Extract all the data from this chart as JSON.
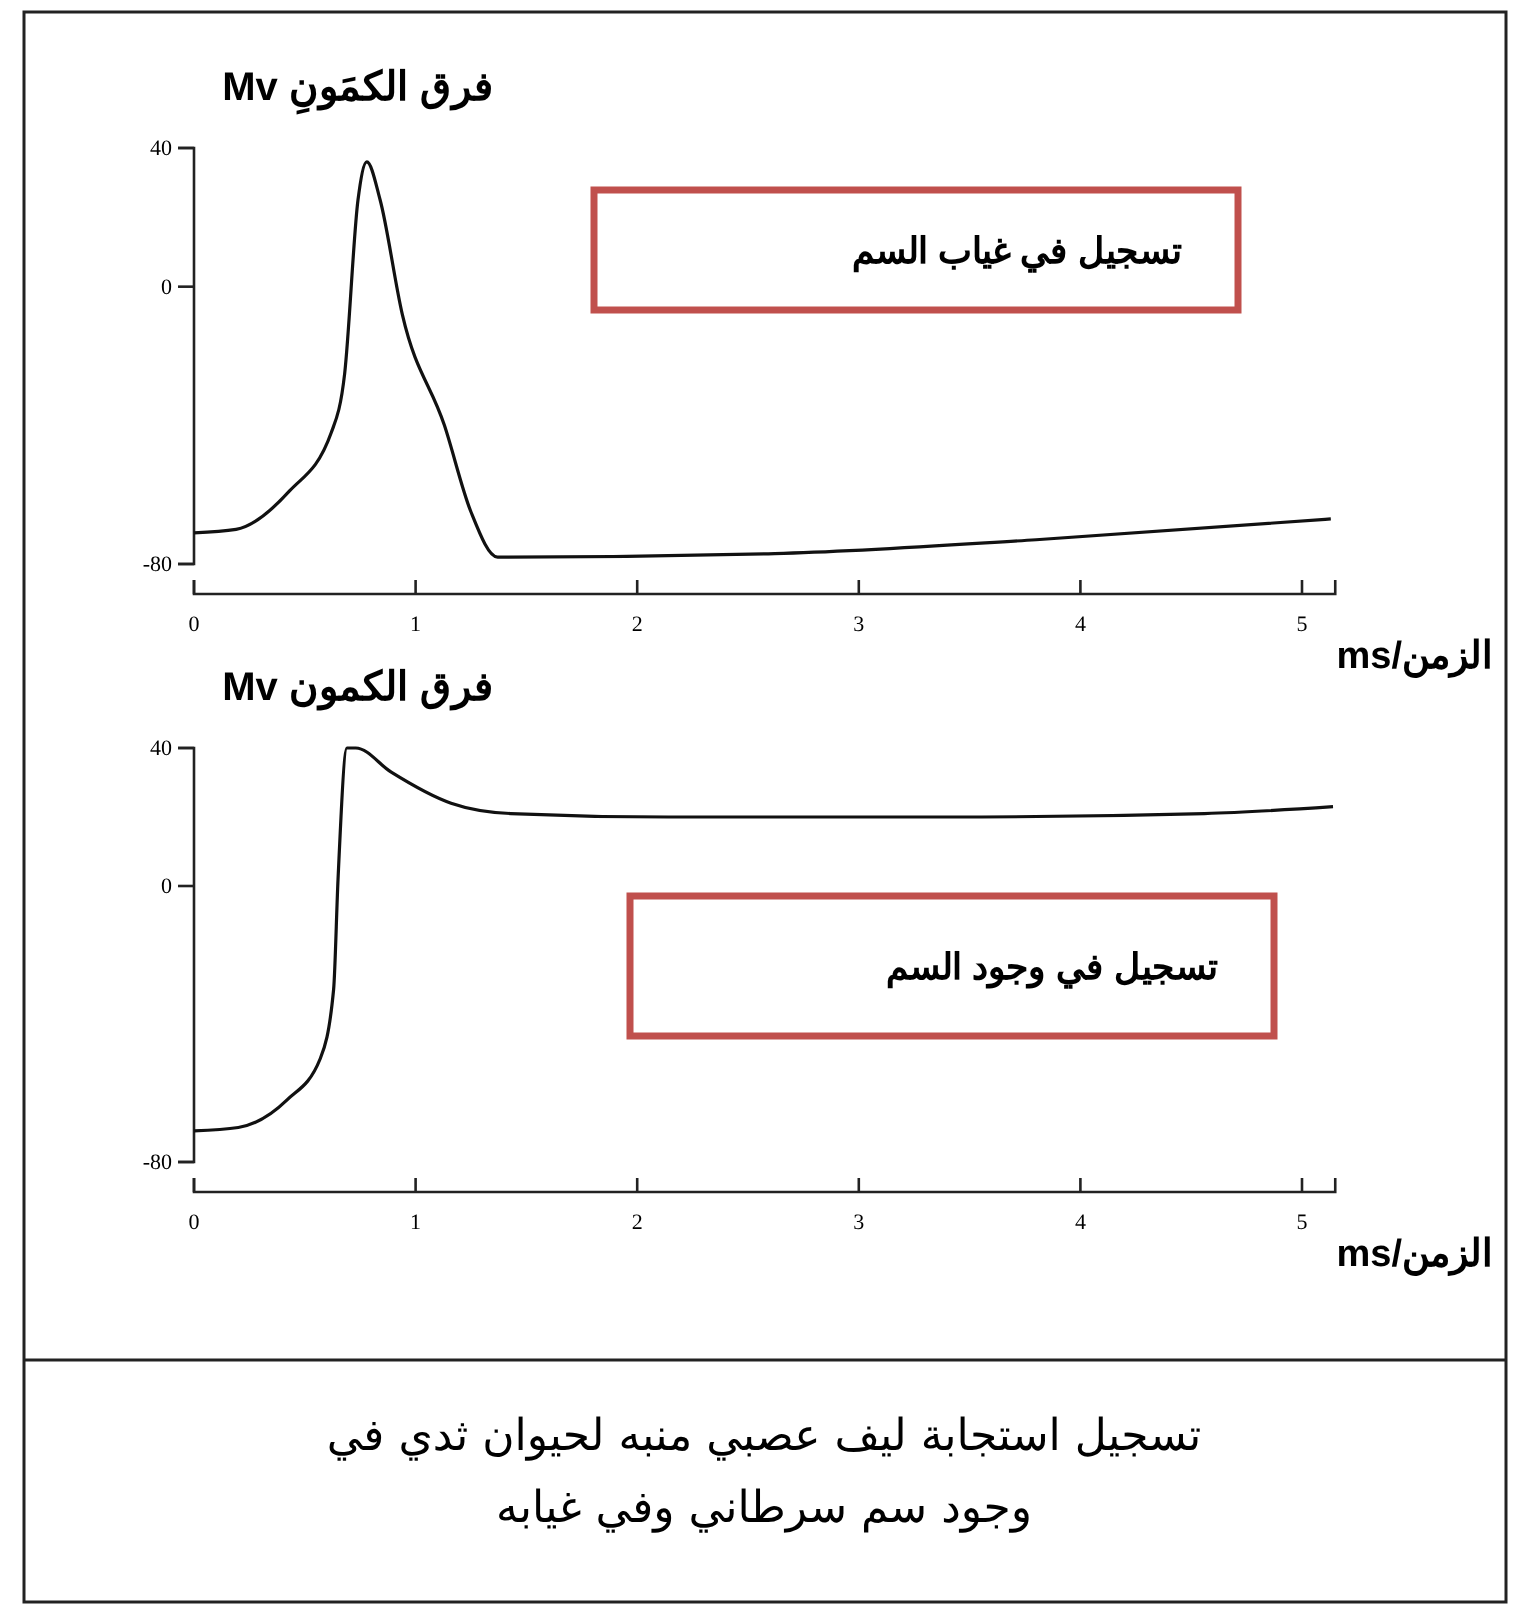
{
  "chart_data": [
    {
      "type": "line",
      "ylabel": "فرق الكمَونِ Mv",
      "xlabel": "الزمن/ms",
      "annotations": [
        "تسجيل في غياب السم"
      ],
      "xlim": [
        0,
        5.15
      ],
      "xticks": [
        0,
        1,
        2,
        3,
        4,
        5
      ],
      "ylim": [
        -80,
        40
      ],
      "yticks": [
        40,
        0,
        -80
      ],
      "grid": false,
      "marker": "none",
      "line_style": "solid",
      "series": [
        {
          "color": "#111111",
          "x": [
            0,
            0.19,
            0.43,
            0.62,
            0.68,
            0.74,
            0.78,
            0.84,
            0.94,
            1.13,
            1.25,
            1.37,
            2.62,
            3.8,
            5.13
          ],
          "values": [
            -71,
            -70,
            -59,
            -42,
            -25,
            25,
            36,
            25,
            -8,
            -40,
            -65,
            -78,
            -77,
            -73,
            -67
          ]
        }
      ]
    },
    {
      "type": "line",
      "ylabel": "فرق الكمون Mv",
      "xlabel": "الزمن/ms",
      "annotations": [
        "تسجيل في وجود السم",
        "تسجيل استجابة ليف عصبي منبه لحيوان ثدي في وجود سم سرطاني وفي غيابه"
      ],
      "xlim": [
        0,
        5.15
      ],
      "xticks": [
        0,
        1,
        2,
        3,
        4,
        5
      ],
      "ylim": [
        -80,
        40
      ],
      "yticks": [
        40,
        0,
        -80
      ],
      "grid": false,
      "marker": "none",
      "line_style": "solid",
      "series": [
        {
          "color": "#111111",
          "x": [
            0,
            0.2,
            0.42,
            0.57,
            0.63,
            0.65,
            0.69,
            0.73,
            0.89,
            1.16,
            1.43,
            2.14,
            3.39,
            4.56,
            5.14
          ],
          "values": [
            -71,
            -70,
            -62,
            -50,
            -30,
            2,
            40,
            40,
            33,
            24,
            21,
            20,
            20,
            21,
            23
          ]
        }
      ]
    }
  ]
}
